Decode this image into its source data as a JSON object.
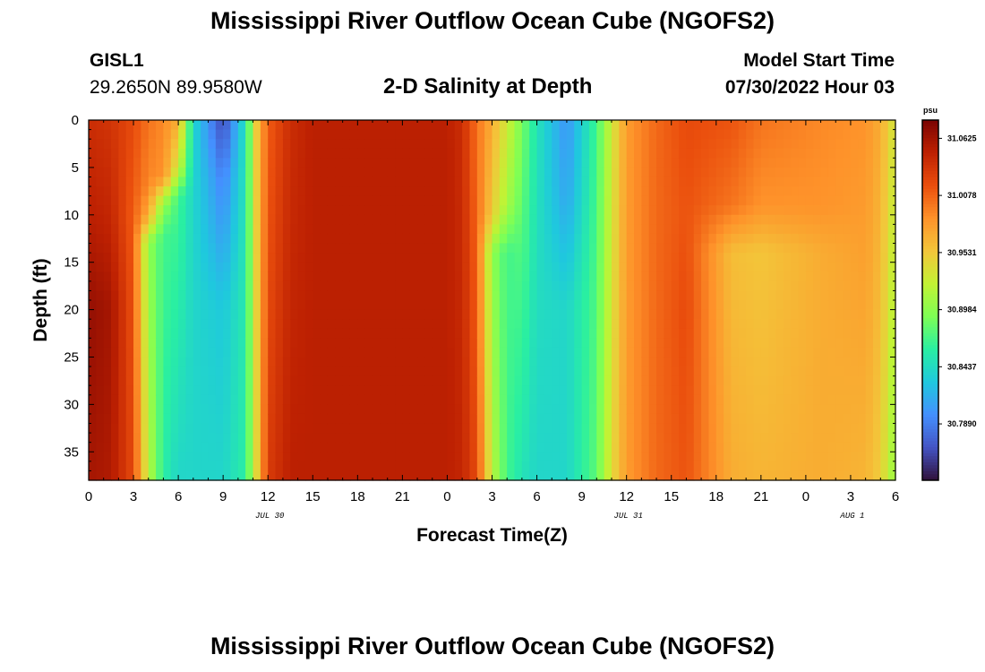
{
  "header": {
    "title": "Mississippi River Outflow Ocean Cube (NGOFS2)",
    "station": "GISL1",
    "coordinates": "29.2650N  89.9580W",
    "subtitle": "2-D Salinity at Depth",
    "model_start_label": "Model Start Time",
    "model_start_value": "07/30/2022 Hour 03"
  },
  "footer": {
    "title": "Mississippi River Outflow Ocean Cube (NGOFS2)"
  },
  "chart_data": {
    "type": "heatmap",
    "title": "2-D Salinity at Depth",
    "xlabel": "Forecast Time(Z)",
    "ylabel": "Depth (ft)",
    "x_tick_labels": [
      "0",
      "3",
      "6",
      "9",
      "12",
      "15",
      "18",
      "21",
      "0",
      "3",
      "6",
      "9",
      "12",
      "15",
      "18",
      "21",
      "0",
      "3",
      "6"
    ],
    "x_range_hours": [
      0,
      54
    ],
    "x_major_tick_every_hours": 3,
    "date_labels": [
      {
        "label": "JUL 30",
        "hour": 12
      },
      {
        "label": "JUL 31",
        "hour": 36
      },
      {
        "label": "AUG 1",
        "hour": 51
      }
    ],
    "y_range_ft": [
      0,
      38
    ],
    "y_ticks": [
      0,
      5,
      10,
      15,
      20,
      25,
      30,
      35
    ],
    "colorbar": {
      "unit": "psu",
      "range": [
        30.735,
        31.08
      ],
      "tick_values": [
        31.0625,
        31.0078,
        30.9531,
        30.8984,
        30.8437,
        30.789
      ],
      "tick_labels": [
        "31.0625",
        "31.0078",
        "30.9531",
        "30.8984",
        "30.8437",
        "30.7890"
      ],
      "colormap": [
        "#30123b",
        "#4454c4",
        "#4490fe",
        "#1fc8de",
        "#29efa2",
        "#7eff55",
        "#c2f234",
        "#f3c63a",
        "#fe922a",
        "#ea4e0d",
        "#be2102",
        "#7a0403"
      ]
    },
    "salinity_field_description": "Columns by forecast hour; each entry lists [depth_ft, salinity_psu] control points",
    "columns": [
      {
        "hour": 0,
        "profile": [
          [
            0,
            31.04
          ],
          [
            10,
            31.05
          ],
          [
            20,
            31.068
          ],
          [
            38,
            31.06
          ]
        ]
      },
      {
        "hour": 1.5,
        "profile": [
          [
            0,
            31.035
          ],
          [
            10,
            31.045
          ],
          [
            20,
            31.06
          ],
          [
            38,
            31.055
          ]
        ]
      },
      {
        "hour": 3,
        "profile": [
          [
            0,
            31.02
          ],
          [
            10,
            31.01
          ],
          [
            20,
            31.015
          ],
          [
            38,
            31.02
          ]
        ]
      },
      {
        "hour": 4,
        "profile": [
          [
            0,
            31.0
          ],
          [
            7,
            30.99
          ],
          [
            10,
            30.97
          ],
          [
            13,
            30.9
          ],
          [
            38,
            30.92
          ]
        ]
      },
      {
        "hour": 5,
        "profile": [
          [
            0,
            30.99
          ],
          [
            6,
            30.985
          ],
          [
            9,
            30.9
          ],
          [
            12,
            30.87
          ],
          [
            38,
            30.86
          ]
        ]
      },
      {
        "hour": 6,
        "profile": [
          [
            0,
            30.97
          ],
          [
            5,
            30.93
          ],
          [
            8,
            30.87
          ],
          [
            38,
            30.84
          ]
        ]
      },
      {
        "hour": 7,
        "profile": [
          [
            0,
            30.84
          ],
          [
            38,
            30.84
          ]
        ]
      },
      {
        "hour": 9,
        "profile": [
          [
            0,
            30.76
          ],
          [
            6,
            30.79
          ],
          [
            20,
            30.83
          ],
          [
            38,
            30.84
          ]
        ]
      },
      {
        "hour": 10.5,
        "profile": [
          [
            0,
            30.85
          ],
          [
            38,
            30.86
          ]
        ]
      },
      {
        "hour": 11.3,
        "profile": [
          [
            0,
            30.96
          ],
          [
            38,
            30.95
          ]
        ]
      },
      {
        "hour": 12,
        "profile": [
          [
            0,
            31.01
          ],
          [
            38,
            31.03
          ]
        ]
      },
      {
        "hour": 13.5,
        "profile": [
          [
            0,
            31.04
          ],
          [
            38,
            31.05
          ]
        ]
      },
      {
        "hour": 15,
        "profile": [
          [
            0,
            31.05
          ],
          [
            38,
            31.05
          ]
        ]
      },
      {
        "hour": 24,
        "profile": [
          [
            0,
            31.05
          ],
          [
            38,
            31.05
          ]
        ]
      },
      {
        "hour": 25,
        "profile": [
          [
            0,
            31.04
          ],
          [
            38,
            31.045
          ]
        ]
      },
      {
        "hour": 26,
        "profile": [
          [
            0,
            31.0
          ],
          [
            38,
            31.02
          ]
        ]
      },
      {
        "hour": 27,
        "profile": [
          [
            0,
            30.97
          ],
          [
            10,
            30.95
          ],
          [
            14,
            30.9
          ],
          [
            38,
            30.92
          ]
        ]
      },
      {
        "hour": 28,
        "profile": [
          [
            0,
            30.93
          ],
          [
            9,
            30.91
          ],
          [
            14,
            30.87
          ],
          [
            38,
            30.87
          ]
        ]
      },
      {
        "hour": 29,
        "profile": [
          [
            0,
            30.89
          ],
          [
            38,
            30.85
          ]
        ]
      },
      {
        "hour": 30,
        "profile": [
          [
            0,
            30.85
          ],
          [
            38,
            30.84
          ]
        ]
      },
      {
        "hour": 32,
        "profile": [
          [
            0,
            30.8
          ],
          [
            8,
            30.81
          ],
          [
            20,
            30.84
          ],
          [
            38,
            30.84
          ]
        ]
      },
      {
        "hour": 34,
        "profile": [
          [
            0,
            30.87
          ],
          [
            38,
            30.88
          ]
        ]
      },
      {
        "hour": 35,
        "profile": [
          [
            0,
            30.93
          ],
          [
            38,
            30.94
          ]
        ]
      },
      {
        "hour": 36,
        "profile": [
          [
            0,
            30.98
          ],
          [
            38,
            30.98
          ]
        ]
      },
      {
        "hour": 38,
        "profile": [
          [
            0,
            31.005
          ],
          [
            38,
            31.005
          ]
        ]
      },
      {
        "hour": 40,
        "profile": [
          [
            0,
            31.02
          ],
          [
            10,
            31.015
          ],
          [
            20,
            31.02
          ],
          [
            38,
            31.015
          ]
        ]
      },
      {
        "hour": 43,
        "profile": [
          [
            0,
            31.015
          ],
          [
            9,
            31.0
          ],
          [
            14,
            30.96
          ],
          [
            38,
            30.97
          ]
        ]
      },
      {
        "hour": 45,
        "profile": [
          [
            0,
            31.0
          ],
          [
            9,
            30.985
          ],
          [
            14,
            30.955
          ],
          [
            38,
            30.965
          ]
        ]
      },
      {
        "hour": 49,
        "profile": [
          [
            0,
            30.99
          ],
          [
            9,
            30.985
          ],
          [
            14,
            30.97
          ],
          [
            38,
            30.97
          ]
        ]
      },
      {
        "hour": 52,
        "profile": [
          [
            0,
            30.985
          ],
          [
            38,
            30.965
          ]
        ]
      },
      {
        "hour": 53,
        "profile": [
          [
            0,
            30.97
          ],
          [
            38,
            30.95
          ]
        ]
      },
      {
        "hour": 54,
        "profile": [
          [
            0,
            30.93
          ],
          [
            38,
            30.9
          ]
        ]
      }
    ]
  }
}
